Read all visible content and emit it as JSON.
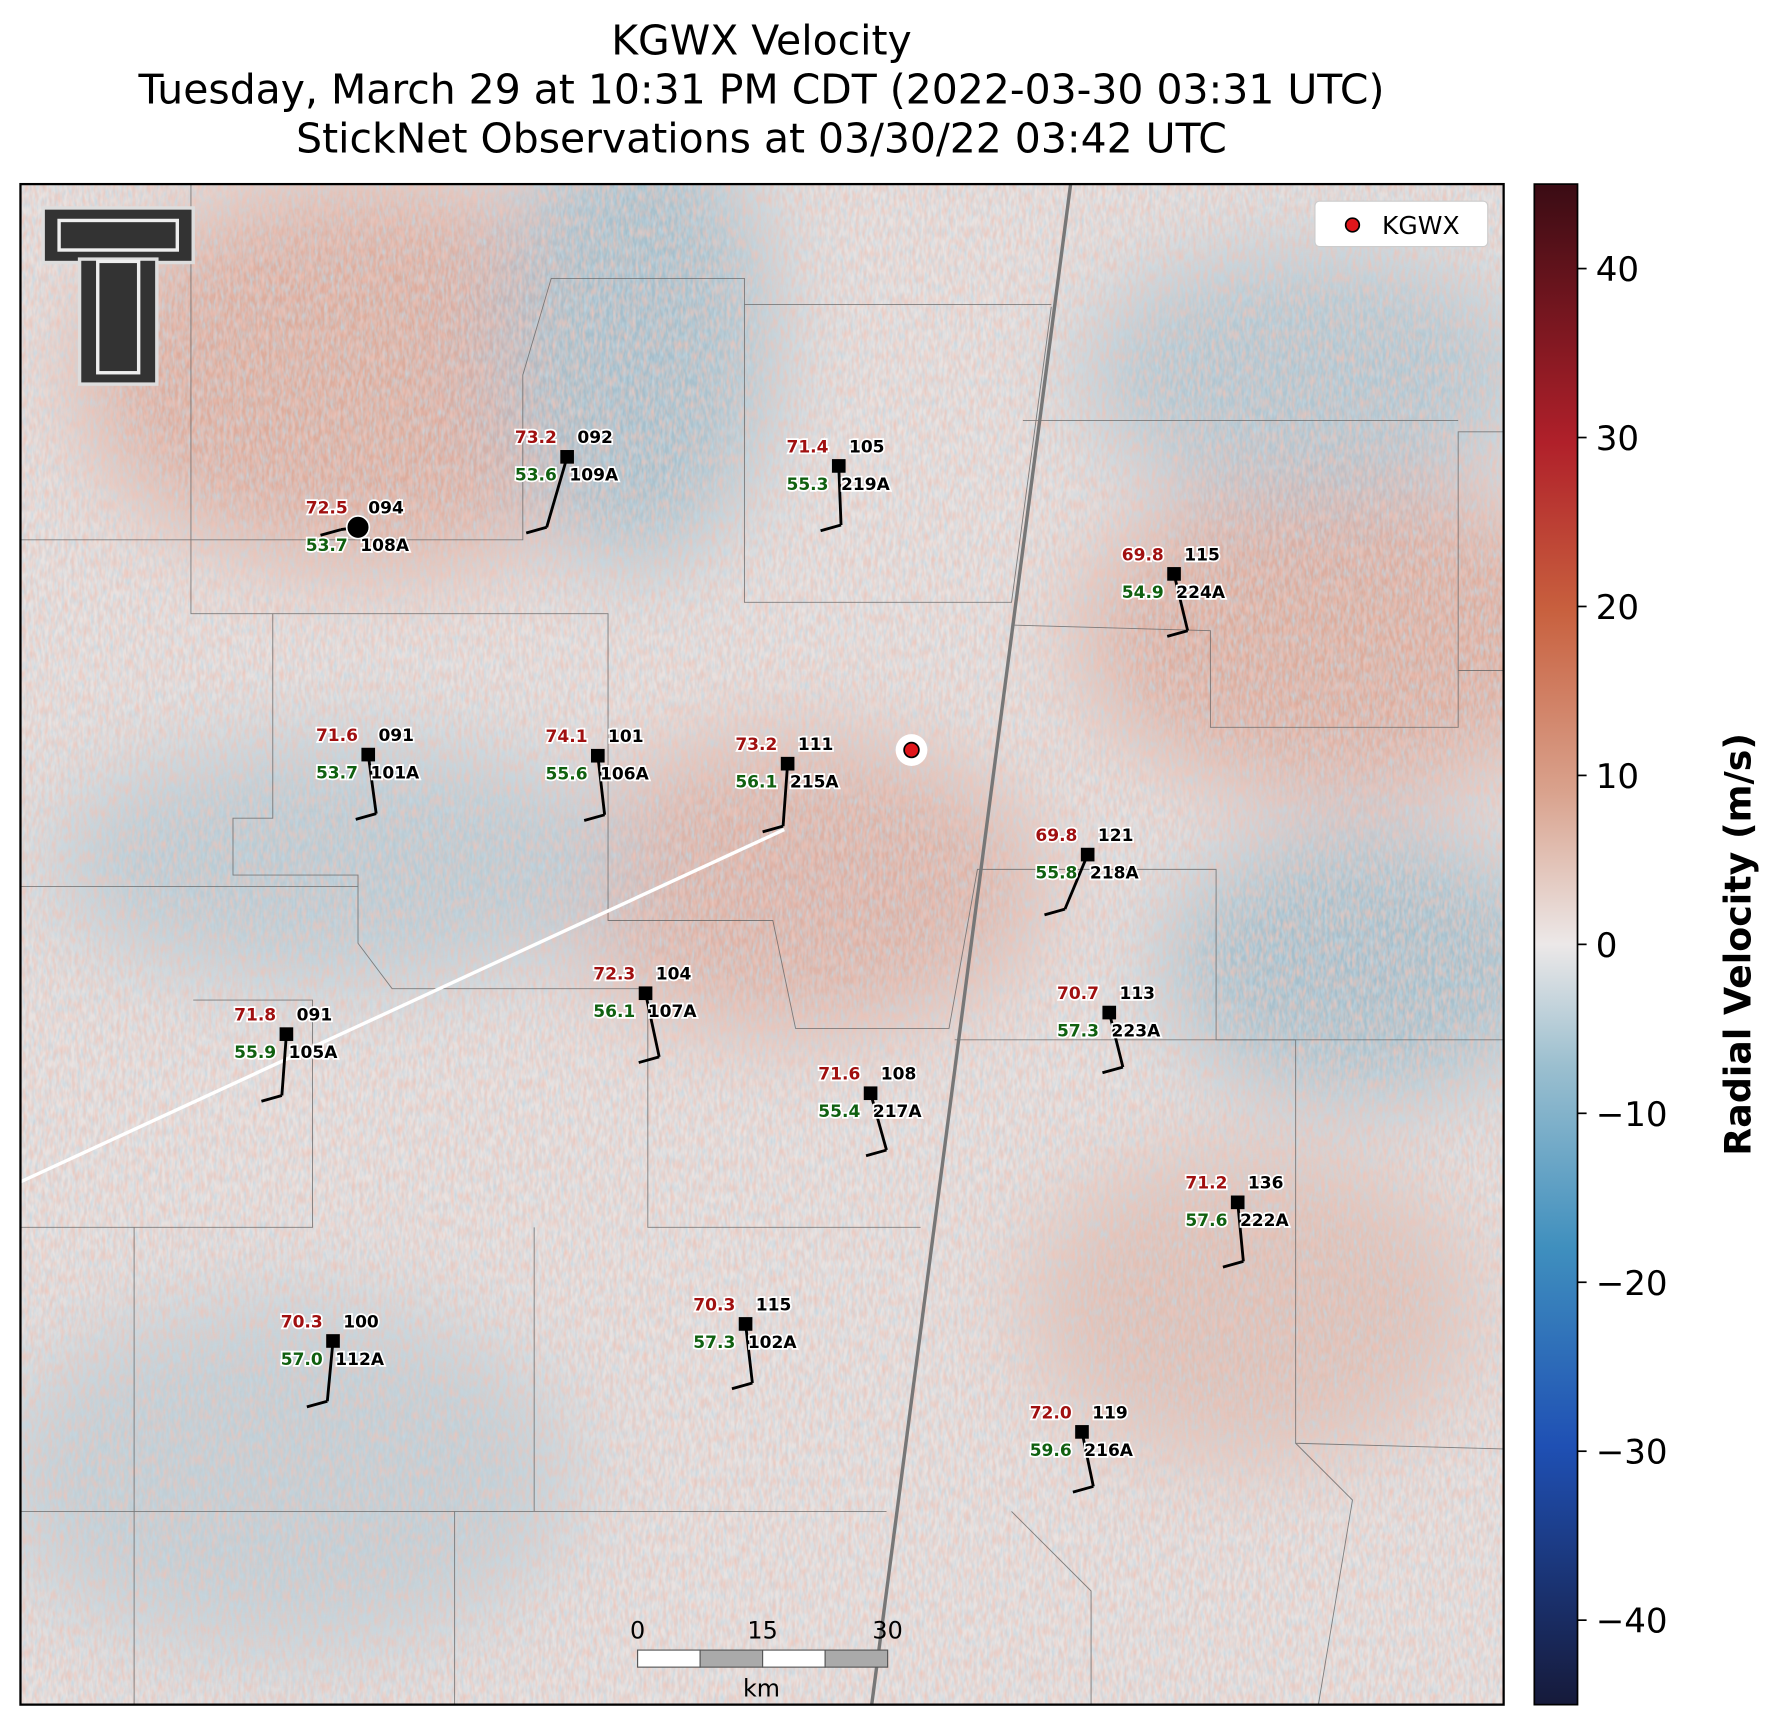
{
  "header": {
    "title": "KGWX Velocity",
    "subtitle": "Tuesday, March 29 at 10:31 PM CDT (2022-03-30 03:31 UTC)",
    "subtitle2": "StickNet Observations at 03/30/22 03:42 UTC"
  },
  "legend": {
    "label": "KGWX",
    "color": "#e0161b"
  },
  "colorbar": {
    "label": "Radial Velocity (m/s)",
    "ylim": [
      -45,
      45
    ],
    "yticks": [
      {
        "value": -40,
        "label": "−40"
      },
      {
        "value": -30,
        "label": "−30"
      },
      {
        "value": -20,
        "label": "−20"
      },
      {
        "value": -10,
        "label": "−10"
      },
      0,
      10,
      20,
      30,
      40
    ]
  },
  "scale_bar": {
    "ticks": [
      0,
      15,
      30
    ],
    "unit": "km"
  },
  "stations": [
    {
      "temp": "72.5",
      "code": "094",
      "dew": "53.7",
      "id": "108A"
    },
    {
      "temp": "73.2",
      "code": "092",
      "dew": "53.6",
      "id": "109A"
    },
    {
      "temp": "71.4",
      "code": "105",
      "dew": "55.3",
      "id": "219A"
    },
    {
      "temp": "69.8",
      "code": "115",
      "dew": "54.9",
      "id": "224A"
    },
    {
      "temp": "71.6",
      "code": "091",
      "dew": "53.7",
      "id": "101A"
    },
    {
      "temp": "74.1",
      "code": "101",
      "dew": "55.6",
      "id": "106A"
    },
    {
      "temp": "73.2",
      "code": "111",
      "dew": "56.1",
      "id": "215A"
    },
    {
      "temp": "69.8",
      "code": "121",
      "dew": "55.8",
      "id": "218A"
    },
    {
      "temp": "72.3",
      "code": "104",
      "dew": "56.1",
      "id": "107A"
    },
    {
      "temp": "71.8",
      "code": "091",
      "dew": "55.9",
      "id": "105A"
    },
    {
      "temp": "70.7",
      "code": "113",
      "dew": "57.3",
      "id": "223A"
    },
    {
      "temp": "71.6",
      "code": "108",
      "dew": "55.4",
      "id": "217A"
    },
    {
      "temp": "71.2",
      "code": "136",
      "dew": "57.6",
      "id": "222A"
    },
    {
      "temp": "70.3",
      "code": "100",
      "dew": "57.0",
      "id": "112A"
    },
    {
      "temp": "70.3",
      "code": "115",
      "dew": "57.3",
      "id": "102A"
    },
    {
      "temp": "72.0",
      "code": "119",
      "dew": "59.6",
      "id": "216A"
    }
  ]
}
